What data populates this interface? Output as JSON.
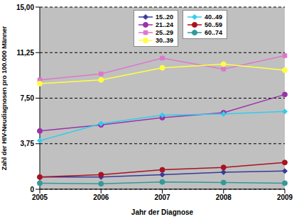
{
  "chart_data": {
    "type": "line",
    "categories": [
      "2005",
      "2006",
      "2007",
      "2008",
      "2009"
    ],
    "x_label": "Jahr der Diagnose",
    "y_label": "Zahl der HIV-Neudiagnosen pro 100.000 Männer",
    "ylim": [
      0,
      15
    ],
    "yticks": [
      0,
      {
        "value": 3.75,
        "label": "3,75"
      },
      {
        "value": 7.5,
        "label": "7,50"
      },
      {
        "value": 11.25,
        "label": "11,25"
      },
      {
        "value": 15,
        "label": "15,00"
      }
    ],
    "grid": true,
    "legend": "top-right",
    "series": [
      {
        "name": "15..20",
        "color": "#3a3a9a",
        "marker": "diamond",
        "values": [
          1.0,
          1.0,
          1.2,
          1.4,
          1.5
        ]
      },
      {
        "name": "21..24",
        "color": "#9933aa",
        "marker": "circle",
        "values": [
          4.8,
          5.3,
          5.9,
          6.3,
          7.8
        ]
      },
      {
        "name": "25..29",
        "color": "#dd77cc",
        "marker": "square",
        "values": [
          9.0,
          9.5,
          10.8,
          9.9,
          11.0
        ]
      },
      {
        "name": "30..39",
        "color": "#ffff44",
        "marker": "circle",
        "values": [
          8.7,
          9.0,
          10.0,
          10.3,
          9.8
        ]
      },
      {
        "name": "40..49",
        "color": "#33ccee",
        "marker": "diamond",
        "values": [
          4.0,
          5.4,
          6.1,
          6.2,
          6.4
        ]
      },
      {
        "name": "50..59",
        "color": "#aa1122",
        "marker": "circle",
        "values": [
          1.0,
          1.2,
          1.6,
          1.8,
          2.2
        ]
      },
      {
        "name": "60..74",
        "color": "#339999",
        "marker": "circle",
        "values": [
          0.5,
          0.45,
          0.6,
          0.55,
          0.5
        ]
      }
    ]
  }
}
